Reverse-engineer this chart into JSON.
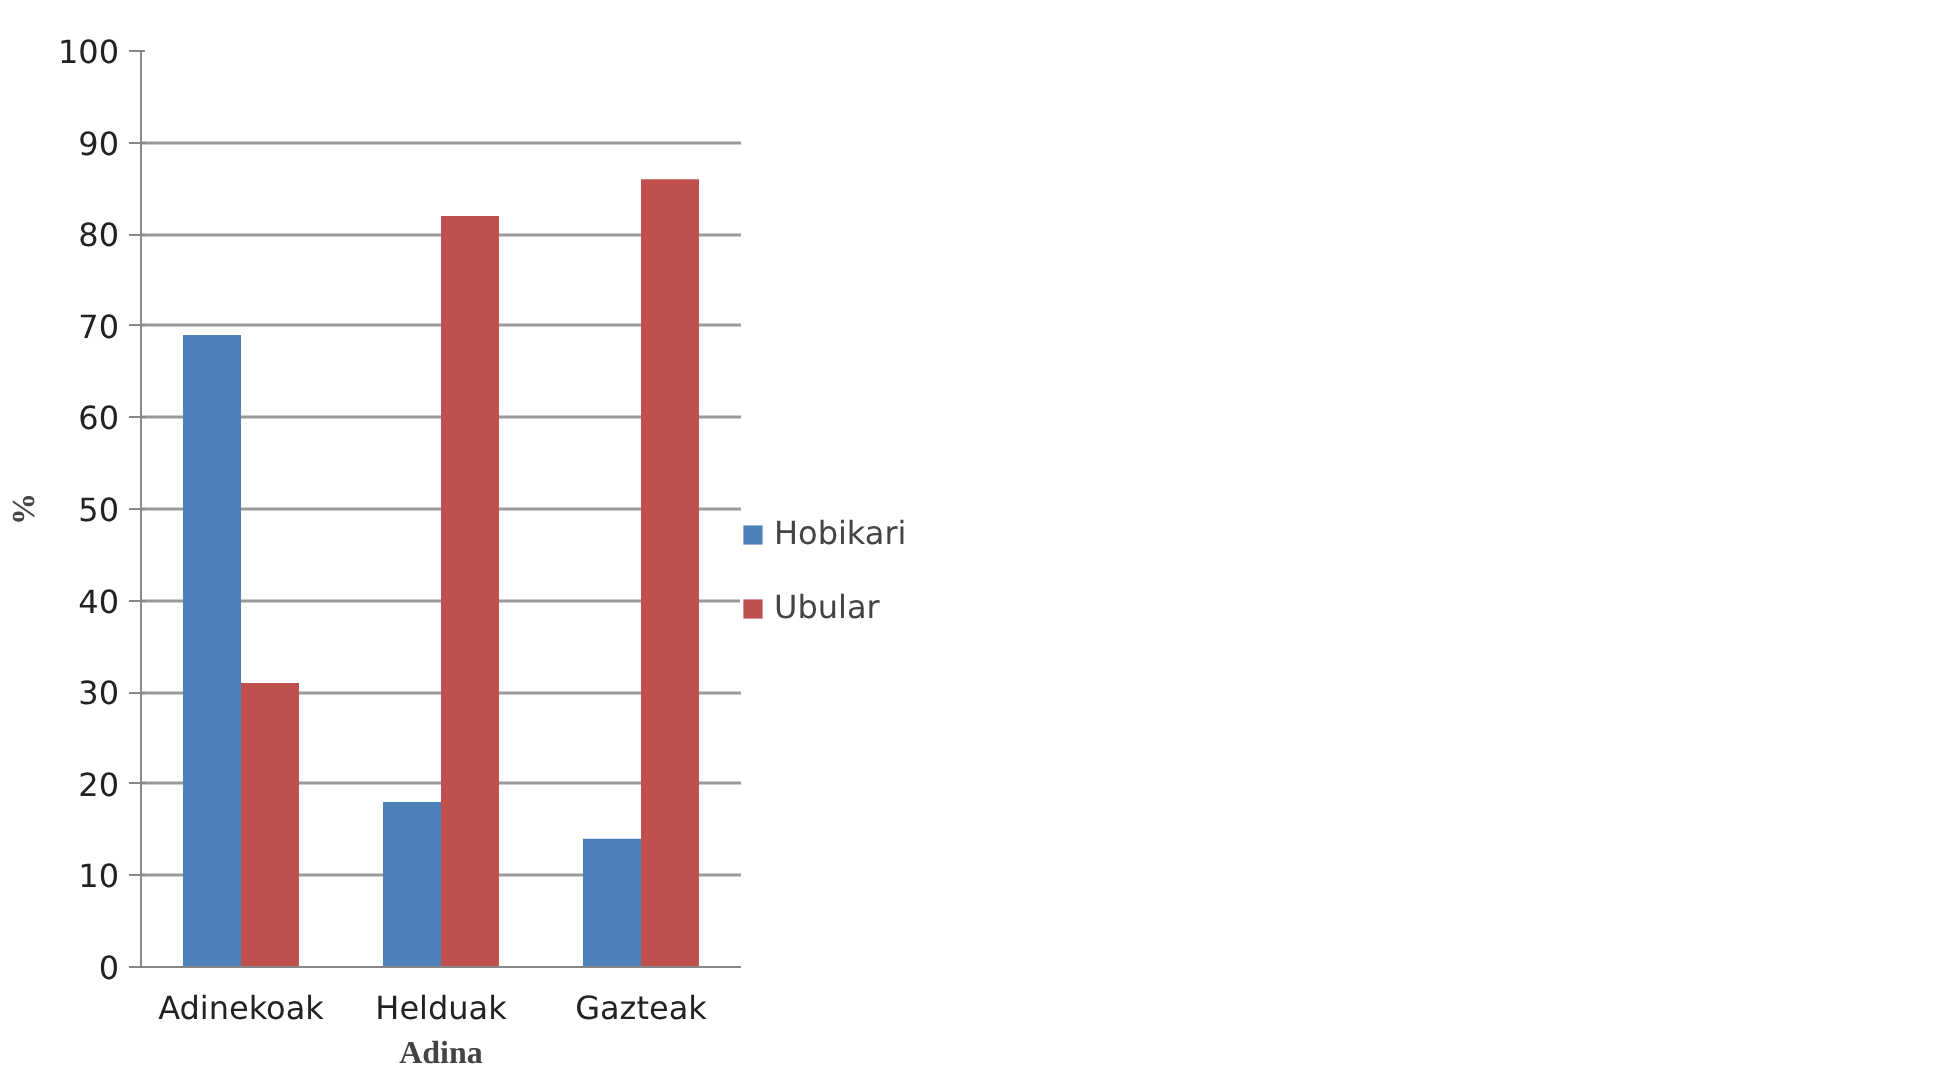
{
  "chart_data": {
    "type": "bar",
    "xlabel": "Adina",
    "ylabel": "%",
    "categories": [
      "Adinekoak",
      "Helduak",
      "Gazteak"
    ],
    "series": [
      {
        "name": "Hobikari",
        "color": "#4f81bd",
        "values": [
          69,
          18,
          14
        ]
      },
      {
        "name": "Ubular",
        "color": "#c0504d",
        "values": [
          31,
          82,
          86
        ]
      }
    ],
    "ylim": [
      0,
      100
    ],
    "yticks": [
      0,
      10,
      20,
      30,
      40,
      50,
      60,
      70,
      80,
      90,
      100
    ],
    "grid": "y",
    "legend": "right"
  }
}
